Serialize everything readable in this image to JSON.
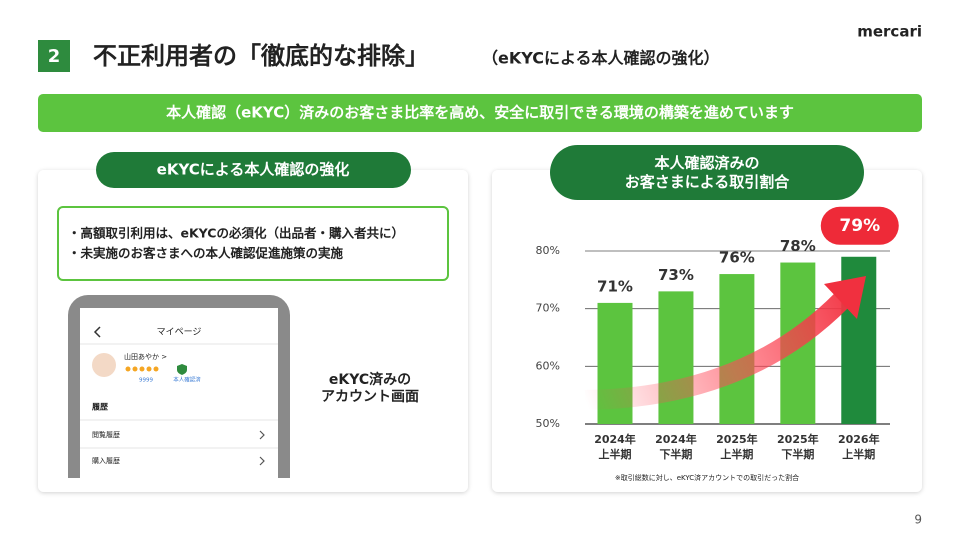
{
  "logo": "mercari",
  "header": {
    "number": "2",
    "title": "不正利用者の「徹底的な排除」",
    "subtitle": "（eKYCによる本人確認の強化）"
  },
  "banner": "本人確認（eKYC）済みのお客さま比率を高め、安全に取引できる環境の構築を進めています",
  "left_panel": {
    "title": "eKYCによる本人確認の強化",
    "bullets": [
      "・高額取引利用は、eKYCの必須化（出品者・購入者共に）",
      "・未実施のお客さまへの本人確認促進施策の実施"
    ],
    "phone": {
      "header": "マイページ",
      "user": "山田あやか >",
      "count": "9999",
      "badge": "本人確認済",
      "section": "履歴",
      "items": [
        "閲覧履歴",
        "購入履歴"
      ]
    },
    "caption": "eKYC済みの\nアカウント画面"
  },
  "chart_data": {
    "type": "bar",
    "title": "本人確認済みの\nお客さまによる取引割合",
    "categories": [
      "2024年\n上半期",
      "2024年\n下半期",
      "2025年\n上半期",
      "2025年\n下半期",
      "2026年\n上半期"
    ],
    "values": [
      71,
      73,
      76,
      78,
      79
    ],
    "value_labels": [
      "71%",
      "73%",
      "76%",
      "78%",
      "79%"
    ],
    "colors": [
      "#5cc43f",
      "#5cc43f",
      "#5cc43f",
      "#5cc43f",
      "#1f8a3c"
    ],
    "ylim": [
      50,
      80
    ],
    "yticks": [
      {
        "value": 50,
        "label": "50%"
      },
      {
        "value": 60,
        "label": "60%"
      },
      {
        "value": 70,
        "label": "70%"
      },
      {
        "value": 80,
        "label": "80%"
      }
    ],
    "grid": true,
    "footnote": "※取引総数に対し、eKYC済アカウントでの取引だった割合"
  },
  "page_number": "9"
}
